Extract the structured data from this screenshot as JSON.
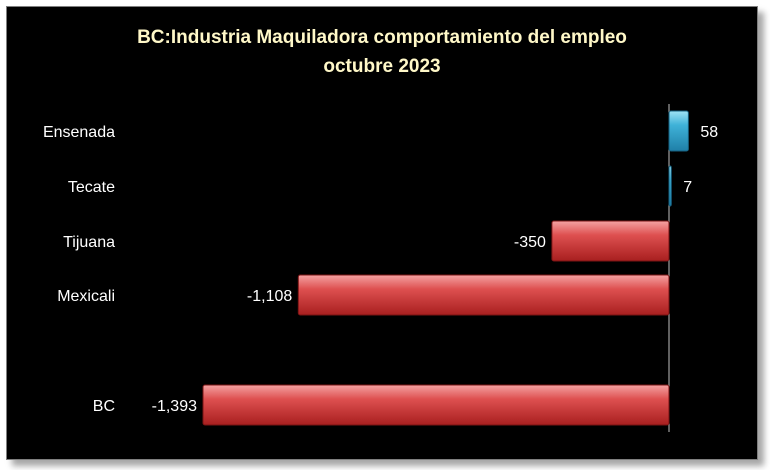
{
  "chart_data": {
    "type": "bar",
    "orientation": "horizontal",
    "title": "BC:Industria Maquiladora comportamiento del empleo",
    "subtitle": "octubre 2023",
    "xlabel": "",
    "ylabel": "",
    "categories": [
      "Ensenada",
      "Tecate",
      "Tijuana",
      "Mexicali",
      "BC"
    ],
    "values": [
      58,
      7,
      -350,
      -1108,
      -1393
    ],
    "value_labels": [
      "58",
      "7",
      "-350",
      "-1,108",
      "-1,393"
    ],
    "xlim": [
      -1393,
      58
    ],
    "grid": false,
    "legend": "none",
    "colors": {
      "positive": "#3fa9cf",
      "negative": "#d23b3b",
      "background": "#000000",
      "title": "#fff8c8",
      "text": "#ffffff"
    }
  }
}
